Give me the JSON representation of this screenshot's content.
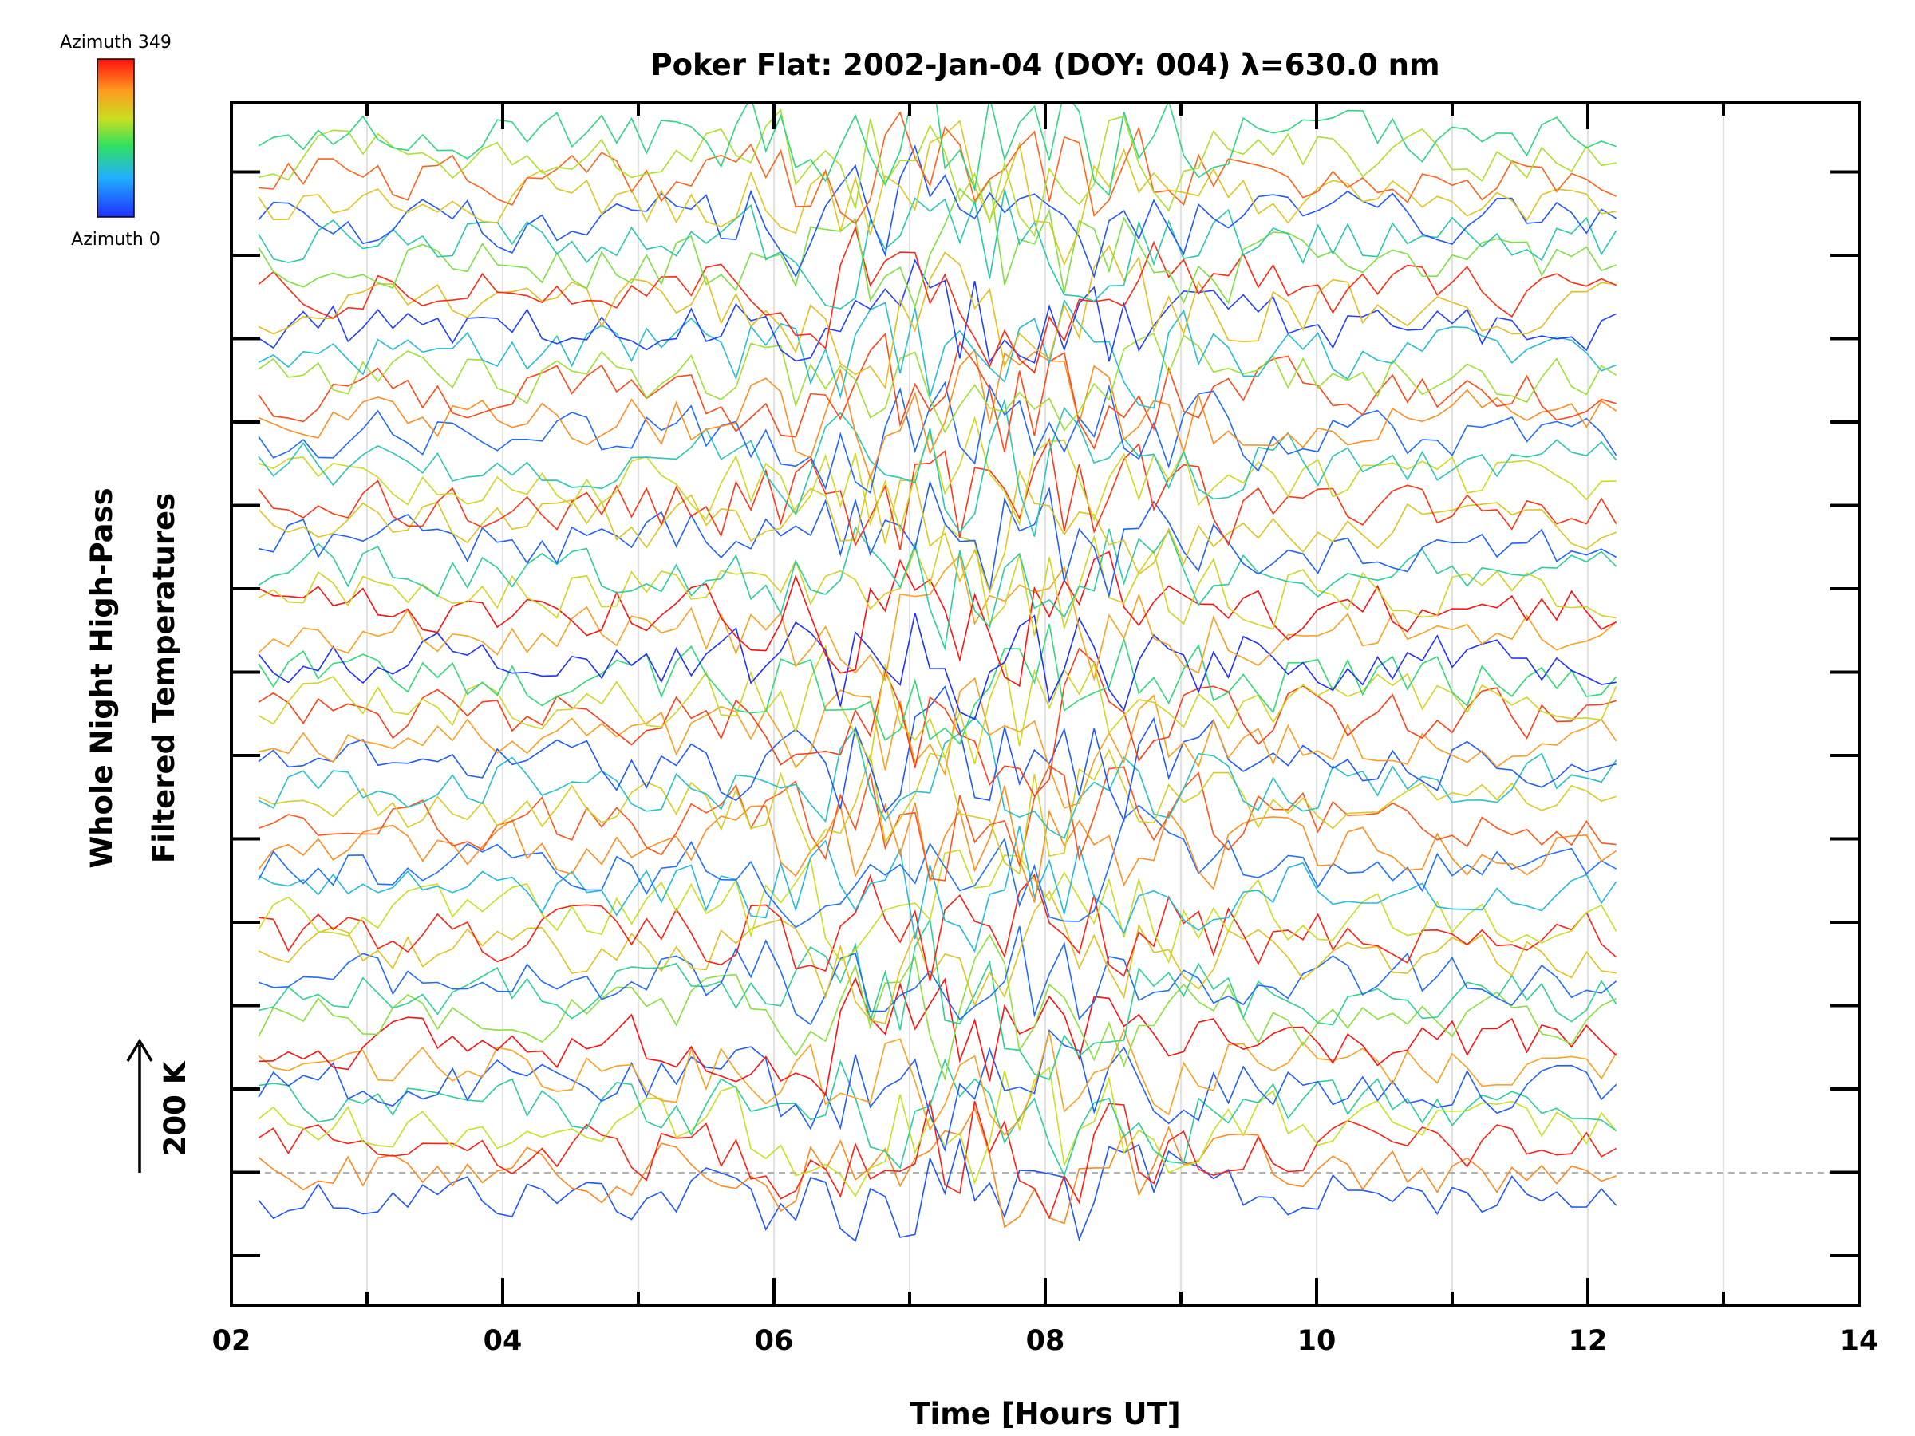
{
  "chart_data": {
    "type": "line",
    "title": "Poker Flat: 2002-Jan-04 (DOY: 004) λ=630.0 nm",
    "xlabel": "Time [Hours UT]",
    "ylabel_line1": "Whole Night High-Pass",
    "ylabel_line2": "Filtered Temperatures",
    "scale_label": "200 K",
    "xlim": [
      2,
      14
    ],
    "xticks": [
      "02",
      "04",
      "06",
      "08",
      "10",
      "12",
      "14"
    ],
    "data_range_hours": [
      2.2,
      12.25
    ],
    "colorbar": {
      "top_label": "Azimuth 349",
      "bottom_label": "Azimuth 0",
      "min": 0,
      "max": 349,
      "colormap": "rainbow"
    },
    "series_count": 50,
    "grid_vertical": true,
    "reference_dashed_line": true
  }
}
